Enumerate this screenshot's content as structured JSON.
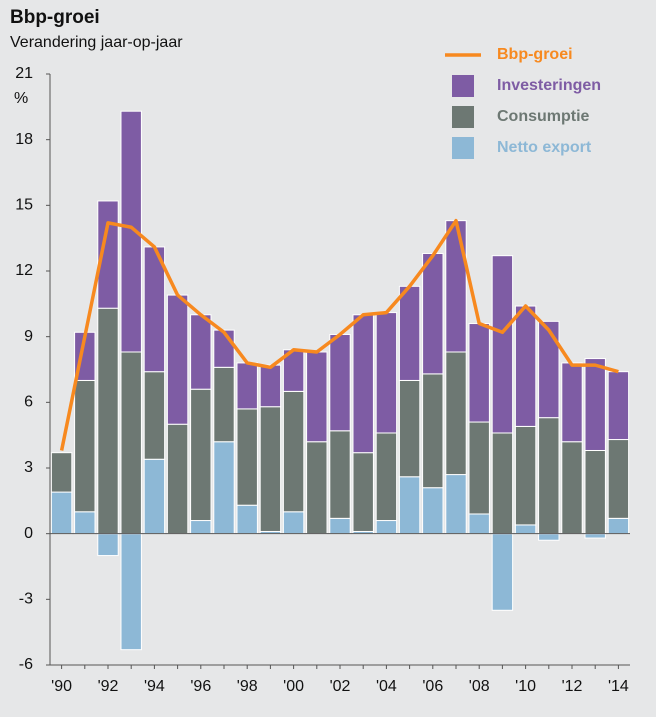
{
  "chart_data": {
    "type": "bar",
    "title": "Bbp-groei",
    "subtitle": "Verandering jaar-op-jaar",
    "y_label": "%",
    "categories": [
      "'90",
      null,
      "'92",
      null,
      "'94",
      null,
      "'96",
      null,
      "'98",
      null,
      "'00",
      null,
      "'02",
      null,
      "'04",
      null,
      "'06",
      null,
      "'08",
      null,
      "'10",
      null,
      "'12",
      null,
      "'14"
    ],
    "series": [
      {
        "name": "Bbp-groei",
        "type": "line",
        "color": "#f7891f",
        "values": [
          3.8,
          9.0,
          14.2,
          14.0,
          13.1,
          10.9,
          10.0,
          9.2,
          7.8,
          7.6,
          8.4,
          8.3,
          9.1,
          10.0,
          10.1,
          11.3,
          12.7,
          14.3,
          9.6,
          9.2,
          10.4,
          9.3,
          7.7,
          7.7,
          7.4
        ]
      },
      {
        "name": "Investeringen",
        "type": "bar",
        "color": "#7e5ca4",
        "values": [
          0,
          2.2,
          4.9,
          11.0,
          5.7,
          5.9,
          3.4,
          1.7,
          2.1,
          1.9,
          1.9,
          4.1,
          4.4,
          6.3,
          5.5,
          4.3,
          5.5,
          6.0,
          4.5,
          8.1,
          5.5,
          4.4,
          3.6,
          4.2,
          3.1
        ]
      },
      {
        "name": "Consumptie",
        "type": "bar",
        "color": "#6d7873",
        "values": [
          1.8,
          6.0,
          10.3,
          8.3,
          4.0,
          5.0,
          6.0,
          3.4,
          4.4,
          5.7,
          5.5,
          4.2,
          4.0,
          3.6,
          4.0,
          4.4,
          5.2,
          5.6,
          4.2,
          4.6,
          4.5,
          5.3,
          4.2,
          3.8,
          3.6
        ]
      },
      {
        "name": "Netto export",
        "type": "bar",
        "color": "#8db8d6",
        "values": [
          1.9,
          1.0,
          -1.0,
          -5.3,
          3.4,
          0,
          0.6,
          4.2,
          1.3,
          0.1,
          1.0,
          0,
          0.7,
          0.1,
          0.6,
          2.6,
          2.1,
          2.7,
          0.9,
          -3.5,
          0.4,
          -0.3,
          0,
          -0.2,
          0.7
        ]
      }
    ],
    "ylim": [
      -6,
      21
    ],
    "yticks": [
      -6,
      -3,
      0,
      3,
      6,
      9,
      12,
      15,
      18,
      21
    ],
    "legend": "top-right"
  }
}
